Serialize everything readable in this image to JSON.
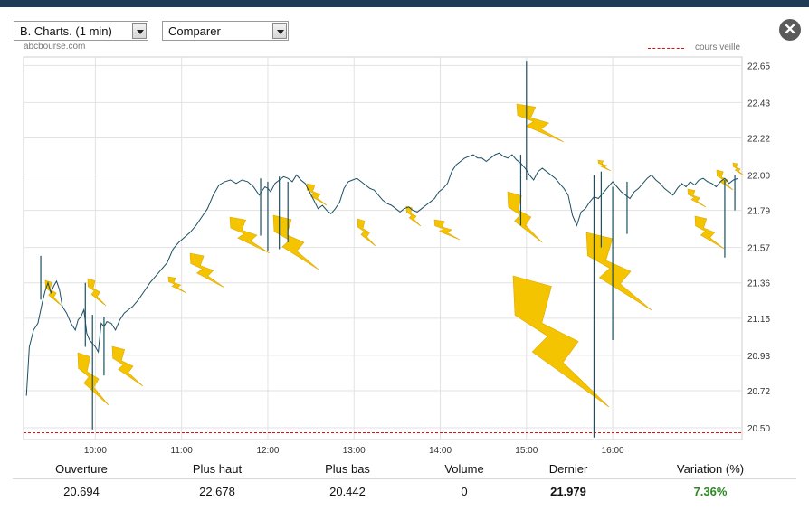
{
  "controls": {
    "period_value": "B. Charts. (1 min)",
    "compare_value": "Comparer"
  },
  "watermark": "abcbourse.com",
  "legend": {
    "reference_label": "cours veille"
  },
  "colors": {
    "price_line": "#1b4f63",
    "reference_line": "#dd1111",
    "grid": "#e2e2e2",
    "lightning": "#f5c400",
    "positive": "#2a8a22"
  },
  "icons": {
    "close": "close-icon"
  },
  "chart_data": {
    "type": "line",
    "title": "",
    "xlabel": "",
    "ylabel": "",
    "x_ticks": [
      "10:00",
      "11:00",
      "12:00",
      "13:00",
      "14:00",
      "15:00",
      "16:00"
    ],
    "y_ticks": [
      20.5,
      20.72,
      20.93,
      21.15,
      21.36,
      21.57,
      21.79,
      22.0,
      22.22,
      22.43,
      22.65
    ],
    "ylim": [
      20.43,
      22.7
    ],
    "xlim": [
      "09:10",
      "17:30"
    ],
    "grid": true,
    "y_axis_position": "right",
    "reference_line": {
      "name": "cours veille",
      "value": 20.47
    },
    "series": [
      {
        "x": [
          "09:12",
          "09:14",
          "09:17",
          "09:20",
          "09:23",
          "09:25",
          "09:27",
          "09:29",
          "09:31",
          "09:33",
          "09:35",
          "09:37",
          "09:40",
          "09:43",
          "09:46",
          "09:48",
          "09:50",
          "09:52",
          "09:54",
          "09:56",
          "09:58",
          "10:00",
          "10:02",
          "10:04",
          "10:06",
          "10:08",
          "10:11",
          "10:14",
          "10:17",
          "10:20",
          "10:23",
          "10:26",
          "10:30",
          "10:34",
          "10:38",
          "10:42",
          "10:46",
          "10:50",
          "10:54",
          "10:58",
          "11:02",
          "11:06",
          "11:10",
          "11:14",
          "11:18",
          "11:22",
          "11:26",
          "11:30",
          "11:34",
          "11:38",
          "11:42",
          "11:46",
          "11:50",
          "11:54",
          "11:58",
          "12:00",
          "12:02",
          "12:05",
          "12:08",
          "12:11",
          "12:14",
          "12:17",
          "12:20",
          "12:23",
          "12:26",
          "12:29",
          "12:32",
          "12:35",
          "12:38",
          "12:41",
          "12:44",
          "12:47",
          "12:50",
          "12:53",
          "12:56",
          "12:59",
          "13:02",
          "13:05",
          "13:08",
          "13:11",
          "13:14",
          "13:17",
          "13:20",
          "13:23",
          "13:26",
          "13:29",
          "13:32",
          "13:35",
          "13:38",
          "13:41",
          "13:44",
          "13:47",
          "13:50",
          "13:53",
          "13:56",
          "13:59",
          "14:02",
          "14:05",
          "14:08",
          "14:11",
          "14:14",
          "14:17",
          "14:20",
          "14:23",
          "14:26",
          "14:29",
          "14:32",
          "14:35",
          "14:38",
          "14:41",
          "14:44",
          "14:47",
          "14:50",
          "14:53",
          "14:56",
          "14:58",
          "15:00",
          "15:02",
          "15:05",
          "15:08",
          "15:11",
          "15:14",
          "15:17",
          "15:20",
          "15:23",
          "15:26",
          "15:29",
          "15:32",
          "15:35",
          "15:38",
          "15:41",
          "15:44",
          "15:47",
          "15:50",
          "15:52",
          "15:54",
          "15:56",
          "15:58",
          "16:00",
          "16:03",
          "16:06",
          "16:09",
          "16:12",
          "16:15",
          "16:18",
          "16:21",
          "16:24",
          "16:27",
          "16:30",
          "16:33",
          "16:36",
          "16:39",
          "16:42",
          "16:45",
          "16:48",
          "16:51",
          "16:54",
          "16:57",
          "17:00",
          "17:03",
          "17:06",
          "17:09",
          "17:12",
          "17:15",
          "17:18",
          "17:21",
          "17:24",
          "17:27"
        ],
        "values": [
          20.69,
          20.98,
          21.08,
          21.12,
          21.24,
          21.31,
          21.36,
          21.3,
          21.34,
          21.37,
          21.32,
          21.22,
          21.18,
          21.12,
          21.08,
          21.14,
          21.16,
          21.2,
          21.06,
          21.02,
          21.0,
          20.98,
          20.95,
          21.12,
          21.1,
          21.13,
          21.12,
          21.08,
          21.14,
          21.18,
          21.2,
          21.22,
          21.26,
          21.31,
          21.36,
          21.4,
          21.44,
          21.48,
          21.56,
          21.6,
          21.63,
          21.66,
          21.7,
          21.75,
          21.8,
          21.88,
          21.94,
          21.96,
          21.97,
          21.95,
          21.97,
          21.96,
          21.93,
          21.88,
          21.93,
          21.92,
          21.9,
          21.95,
          21.97,
          21.99,
          21.98,
          21.96,
          22.0,
          21.97,
          21.95,
          21.9,
          21.85,
          21.8,
          21.82,
          21.79,
          21.77,
          21.8,
          21.84,
          21.92,
          21.96,
          21.97,
          21.98,
          21.96,
          21.94,
          21.92,
          21.91,
          21.88,
          21.85,
          21.83,
          21.82,
          21.8,
          21.78,
          21.8,
          21.81,
          21.79,
          21.78,
          21.8,
          21.82,
          21.84,
          21.86,
          21.9,
          21.92,
          21.95,
          22.02,
          22.06,
          22.08,
          22.1,
          22.11,
          22.12,
          22.1,
          22.1,
          22.08,
          22.1,
          22.12,
          22.13,
          22.11,
          22.1,
          22.12,
          22.09,
          22.07,
          22.05,
          22.03,
          22.0,
          21.97,
          22.02,
          22.04,
          22.02,
          22.0,
          21.98,
          21.95,
          21.92,
          21.88,
          21.76,
          21.7,
          21.78,
          21.8,
          21.84,
          21.87,
          21.86,
          21.88,
          21.9,
          21.92,
          21.94,
          21.96,
          21.93,
          21.9,
          21.88,
          21.86,
          21.9,
          21.92,
          21.95,
          21.98,
          22.0,
          21.97,
          21.95,
          21.92,
          21.9,
          21.88,
          21.92,
          21.95,
          21.93,
          21.96,
          21.94,
          21.97,
          21.98,
          21.96,
          21.95,
          21.93,
          21.96,
          21.98,
          21.95,
          21.97,
          21.979
        ]
      }
    ],
    "spikes": [
      {
        "x": "09:22",
        "high": 21.52,
        "low": 21.26
      },
      {
        "x": "09:53",
        "high": 21.36,
        "low": 20.98
      },
      {
        "x": "09:58",
        "high": 21.17,
        "low": 20.49
      },
      {
        "x": "10:06",
        "high": 21.16,
        "low": 20.81
      },
      {
        "x": "11:55",
        "high": 21.98,
        "low": 21.64
      },
      {
        "x": "12:00",
        "high": 21.96,
        "low": 21.55
      },
      {
        "x": "12:08",
        "high": 21.99,
        "low": 21.56
      },
      {
        "x": "12:14",
        "high": 21.96,
        "low": 21.6
      },
      {
        "x": "14:56",
        "high": 22.12,
        "low": 21.7
      },
      {
        "x": "15:00",
        "high": 22.678,
        "low": 21.97
      },
      {
        "x": "15:47",
        "high": 22.0,
        "low": 20.442
      },
      {
        "x": "15:52",
        "high": 22.02,
        "low": 21.57
      },
      {
        "x": "16:00",
        "high": 21.93,
        "low": 21.02
      },
      {
        "x": "16:10",
        "high": 21.96,
        "low": 21.65
      },
      {
        "x": "17:18",
        "high": 21.97,
        "low": 21.51
      },
      {
        "x": "17:25",
        "high": 22.0,
        "low": 21.79
      }
    ]
  },
  "stats": {
    "headers": [
      "Ouverture",
      "Plus haut",
      "Plus bas",
      "Volume",
      "Dernier",
      "Variation (%)"
    ],
    "values": [
      "20.694",
      "22.678",
      "20.442",
      "0",
      "21.979",
      "7.36%"
    ]
  }
}
